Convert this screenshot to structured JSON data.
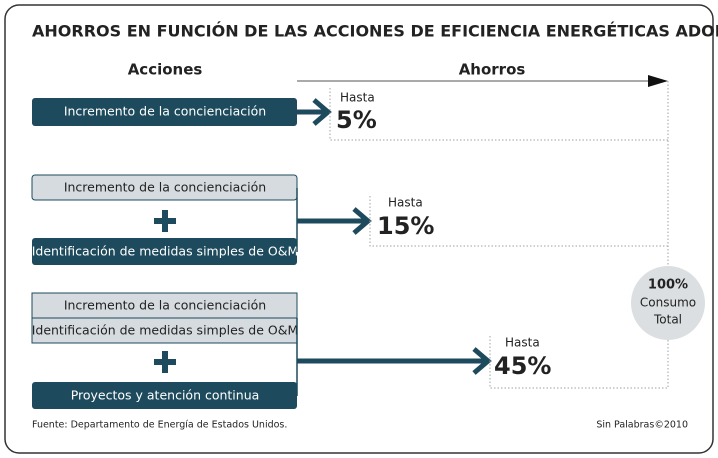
{
  "header": {
    "title": "AHORROS EN FUNCIÓN DE LAS ACCIONES DE EFICIENCIA ENERGÉTICAS ADOPTADAS",
    "actions_heading": "Acciones",
    "savings_heading": "Ahorros"
  },
  "groups": [
    {
      "actions": [
        "Incremento de la concienciación"
      ],
      "savings_prefix": "Hasta",
      "savings": "5%"
    },
    {
      "actions": [
        "Incremento de la concienciación",
        "Identificación de medidas simples de O&M"
      ],
      "savings_prefix": "Hasta",
      "savings": "15%"
    },
    {
      "actions": [
        "Incremento de la concienciación",
        "Identificación de medidas simples de O&M",
        "Proyectos y atención continua"
      ],
      "savings_prefix": "Hasta",
      "savings": "45%"
    }
  ],
  "total": {
    "value": "100%",
    "line1": "Consumo",
    "line2": "Total"
  },
  "footer": {
    "source": "Fuente: Departamento de Energía de Estados Unidos.",
    "credit": "Sin Palabras©2010"
  }
}
